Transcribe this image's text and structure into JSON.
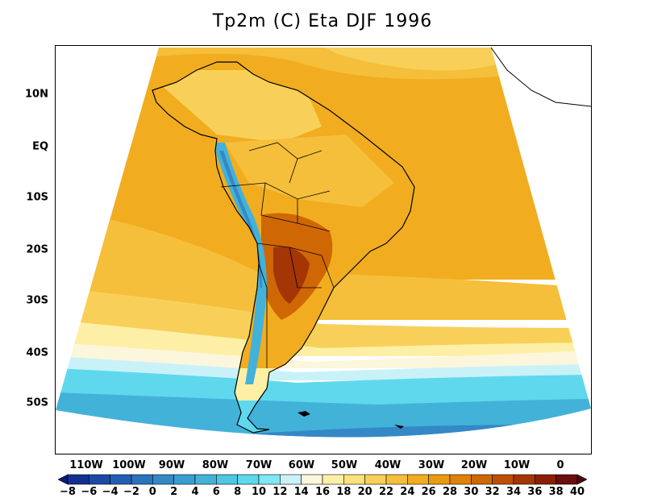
{
  "title": "Tp2m (C) Eta DJF 1996",
  "latitude_labels": [
    "10N",
    "EQ",
    "10S",
    "20S",
    "30S",
    "40S",
    "50S"
  ],
  "longitude_labels": [
    "110W",
    "100W",
    "90W",
    "80W",
    "70W",
    "60W",
    "50W",
    "40W",
    "30W",
    "20W",
    "10W",
    "0"
  ],
  "colorbar": {
    "labels": [
      "-8",
      "-6",
      "-4",
      "-2",
      "0",
      "2",
      "4",
      "6",
      "8",
      "10",
      "12",
      "14",
      "16",
      "18",
      "20",
      "22",
      "24",
      "26",
      "28",
      "30",
      "32",
      "34",
      "36",
      "38",
      "40"
    ],
    "colors": [
      "#0a1a78",
      "#12308f",
      "#1a4aa6",
      "#225fb3",
      "#2a73bd",
      "#3488c6",
      "#3a9dcf",
      "#43b2d9",
      "#4fc6e3",
      "#5fd8ed",
      "#7fe8f4",
      "#c8f2f8",
      "#fbf6dc",
      "#fdf0a6",
      "#fbe27a",
      "#f8d059",
      "#f5bf3c",
      "#f1ad1f",
      "#eb9a10",
      "#df8208",
      "#cf6705",
      "#bc4f04",
      "#a43504",
      "#8a1f06",
      "#6a0e10",
      "#4a0815"
    ]
  },
  "map_colors": {
    "ocean_warm": "#f1ad1f",
    "ocean_mid": "#f5bf3c",
    "ocean_light": "#f8d059",
    "pale_yellow": "#fdf0a6",
    "cream": "#fbf6dc",
    "pale_cyan": "#c8f2f8",
    "cyan": "#5fd8ed",
    "blue": "#43b2d9",
    "deep_blue": "#3488c6",
    "hot": "#cf6705",
    "hotter": "#a43504"
  }
}
